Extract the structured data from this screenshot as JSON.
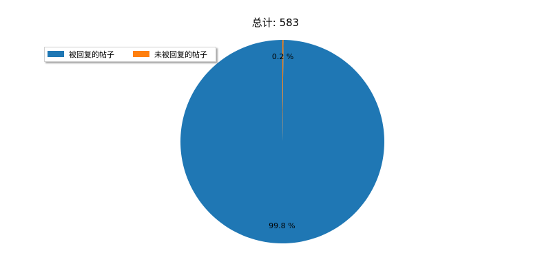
{
  "chart_data": {
    "type": "pie",
    "title": "总计: 583",
    "total": 583,
    "categories": [
      "被回复的帖子",
      "未被回复的帖子"
    ],
    "values": [
      582,
      1
    ],
    "percent_labels": [
      "99.8 %",
      "0.2 %"
    ],
    "colors": [
      "#1f77b4",
      "#ff7f0e"
    ],
    "legend": {
      "placement": "top-left",
      "entries": [
        "被回复的帖子",
        "未被回复的帖子"
      ]
    },
    "start_angle_deg": 90,
    "direction": "counterclockwise"
  }
}
